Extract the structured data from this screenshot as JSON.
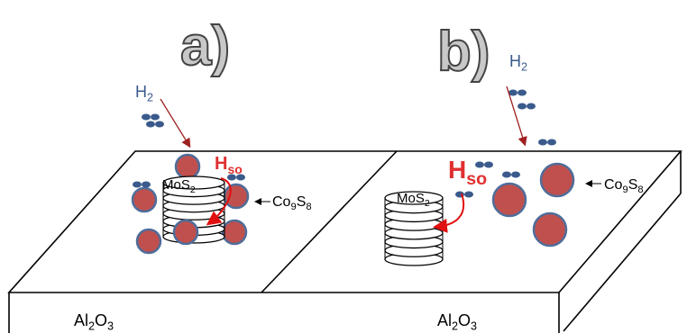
{
  "panel_a": {
    "label": "a)",
    "h2": [
      "H",
      "2"
    ],
    "catalyst": [
      "MoS",
      "2"
    ],
    "promoter": [
      "Co",
      "9",
      "S",
      "8"
    ],
    "spillover": [
      "H",
      "so"
    ],
    "support": [
      "Al",
      "2",
      "O",
      "3"
    ]
  },
  "panel_b": {
    "label": "b)",
    "h2": [
      "H",
      "2"
    ],
    "catalyst": [
      "MoS",
      "2"
    ],
    "promoter": [
      "Co",
      "9",
      "S",
      "8"
    ],
    "spillover": [
      "H",
      "so"
    ],
    "support": [
      "Al",
      "2",
      "O",
      "3"
    ]
  }
}
